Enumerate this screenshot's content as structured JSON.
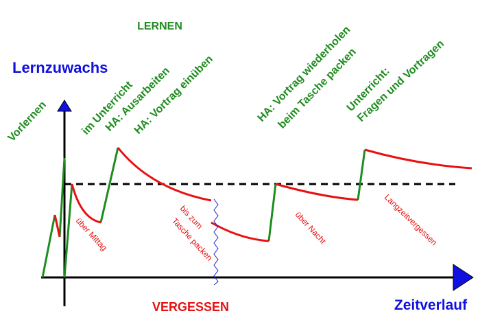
{
  "header": {
    "title": "LERNEN"
  },
  "axes": {
    "y_label": "Lernzuwachs",
    "x_label": "Zeitverlauf"
  },
  "learning_labels": [
    "Vorlernen",
    "im Unterricht",
    "HA: Ausarbeiten",
    "HA: Vortrag einüben",
    "HA: Vortrag wiederholen",
    "beim Tasche packen",
    "Unterricht:",
    "Fragen und Vortragen"
  ],
  "forgetting_labels": [
    "über Mittag",
    "bis zum",
    "Tasche packen",
    "über Nacht",
    "Langzeitvergessen"
  ],
  "footer": {
    "title": "VERGESSEN"
  }
}
